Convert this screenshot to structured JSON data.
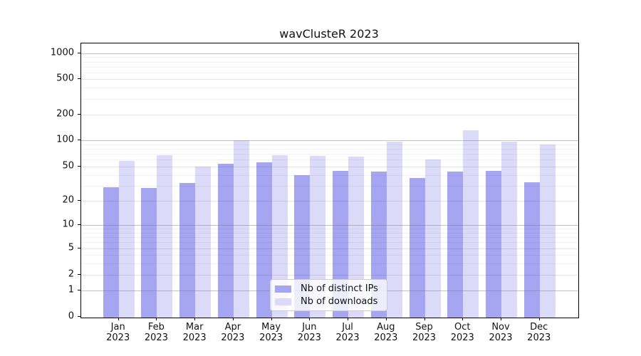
{
  "title": "wavClusteR 2023",
  "chart_data": {
    "type": "bar",
    "title": "wavClusteR 2023",
    "categories": [
      "Jan",
      "Feb",
      "Mar",
      "Apr",
      "May",
      "Jun",
      "Jul",
      "Aug",
      "Sep",
      "Oct",
      "Nov",
      "Dec"
    ],
    "year": "2023",
    "series": [
      {
        "name": "Nb of distinct IPs",
        "color": "#a5a5f1",
        "values": [
          29,
          28,
          32,
          54,
          56,
          40,
          45,
          44,
          37,
          44,
          45,
          33
        ]
      },
      {
        "name": "Nb of downloads",
        "color": "#dbdbf9",
        "values": [
          58,
          67,
          50,
          100,
          67,
          66,
          65,
          97,
          60,
          130,
          96,
          89
        ]
      }
    ],
    "y_axis": {
      "scale": "symlog",
      "ticks": [
        0,
        1,
        2,
        5,
        10,
        20,
        50,
        100,
        200,
        500,
        1000
      ]
    },
    "x_axis": {
      "tick_label_format": "month-over-year"
    },
    "legend": {
      "position": "inside-bottom-center",
      "entries": [
        "Nb of distinct IPs",
        "Nb of downloads"
      ]
    },
    "grid": true
  }
}
